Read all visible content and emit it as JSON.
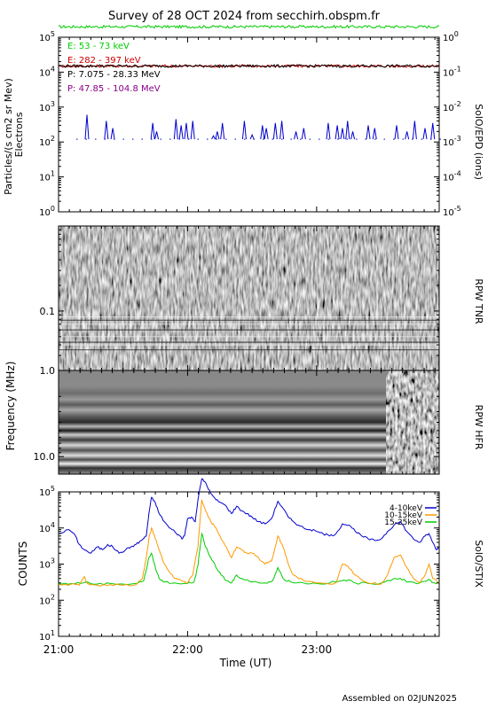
{
  "title": "Survey of 28 OCT 2024 from secchirh.obspm.fr",
  "footer": "Assembled on 02JUN2025",
  "colors": {
    "green": "#00cc00",
    "red": "#cc0000",
    "black": "#000000",
    "purple": "#880088",
    "blue": "#0000cc",
    "orange": "#ff9900",
    "stix_green": "#00cc00"
  },
  "chart_data": [
    {
      "type": "line",
      "panel": "SolO/EPD",
      "ylabel": "Particles/(s cm2 sr Mev)",
      "ylabel2": "Electrons",
      "right_label": "SolO/EPD (ions)",
      "yscale": "log",
      "ylim": [
        1,
        100000
      ],
      "yticks": [
        {
          "exp": 0,
          "label": "10",
          "sup": "0"
        },
        {
          "exp": 1,
          "label": "10",
          "sup": "1"
        },
        {
          "exp": 2,
          "label": "10",
          "sup": "2"
        },
        {
          "exp": 3,
          "label": "10",
          "sup": "3"
        },
        {
          "exp": 4,
          "label": "10",
          "sup": "4"
        },
        {
          "exp": 5,
          "label": "10",
          "sup": "5"
        }
      ],
      "right_yscale": "log",
      "right_ylim": [
        1e-05,
        1
      ],
      "right_yticks": [
        {
          "exp": -5,
          "label": "10",
          "sup": "-5"
        },
        {
          "exp": -4,
          "label": "10",
          "sup": "-4"
        },
        {
          "exp": -3,
          "label": "10",
          "sup": "-3"
        },
        {
          "exp": -2,
          "label": "10",
          "sup": "-2"
        },
        {
          "exp": -1,
          "label": "10",
          "sup": "-1"
        },
        {
          "exp": 0,
          "label": "10",
          "sup": "0"
        }
      ],
      "xlim_hours": [
        21.0,
        23.95
      ],
      "series": [
        {
          "name": "E: 53 - 73 keV",
          "color": "#00cc00",
          "axis": "left",
          "kind": "flat",
          "level": 200000
        },
        {
          "name": "E: 282 - 397 keV",
          "color": "#cc0000",
          "axis": "left",
          "kind": "flat",
          "level": 15000
        },
        {
          "name": "P: 7.075 - 28.33 MeV",
          "color": "#000000",
          "axis": "right",
          "kind": "flat",
          "level": 0.15
        },
        {
          "name": "P: 47.85 - 104.8 MeV",
          "color": "#880088",
          "axis": "right",
          "kind": "none"
        },
        {
          "name": "",
          "color": "#0000cc",
          "axis": "left",
          "kind": "spikes",
          "baseline": 120,
          "spikes": [
            [
              21.22,
              600
            ],
            [
              21.37,
              400
            ],
            [
              21.42,
              250
            ],
            [
              21.73,
              350
            ],
            [
              21.76,
              200
            ],
            [
              21.91,
              450
            ],
            [
              21.95,
              300
            ],
            [
              21.99,
              350
            ],
            [
              22.04,
              400
            ],
            [
              22.2,
              150
            ],
            [
              22.23,
              200
            ],
            [
              22.27,
              350
            ],
            [
              22.44,
              400
            ],
            [
              22.5,
              160
            ],
            [
              22.58,
              300
            ],
            [
              22.61,
              250
            ],
            [
              22.68,
              350
            ],
            [
              22.73,
              400
            ],
            [
              22.84,
              200
            ],
            [
              22.9,
              250
            ],
            [
              23.09,
              350
            ],
            [
              23.16,
              300
            ],
            [
              23.2,
              250
            ],
            [
              23.24,
              400
            ],
            [
              23.28,
              200
            ],
            [
              23.4,
              300
            ],
            [
              23.45,
              250
            ],
            [
              23.62,
              300
            ],
            [
              23.7,
              200
            ],
            [
              23.76,
              400
            ],
            [
              23.84,
              250
            ],
            [
              23.9,
              350
            ]
          ]
        }
      ]
    },
    {
      "type": "heatmap",
      "panel": "RPW TNR",
      "ylabel": "Frequency (MHz)",
      "right_label": "RPW TNR",
      "yscale": "log",
      "ylim_mhz": [
        0.02,
        1.0
      ],
      "yticks": [
        {
          "value": 0.1,
          "label": "0.1"
        }
      ]
    },
    {
      "type": "heatmap",
      "panel": "RPW HFR",
      "right_label": "RPW HFR",
      "yscale": "log",
      "ylim_mhz": [
        1.0,
        16.0
      ],
      "yticks": [
        {
          "value": 1.0,
          "label": "1.0"
        },
        {
          "value": 10.0,
          "label": "10.0"
        }
      ]
    },
    {
      "type": "line",
      "panel": "SolO/STIX",
      "ylabel": "COUNTS",
      "right_label": "SolO/STIX",
      "yscale": "log",
      "ylim": [
        10,
        100000
      ],
      "yticks": [
        {
          "exp": 1,
          "label": "10",
          "sup": "1"
        },
        {
          "exp": 2,
          "label": "10",
          "sup": "2"
        },
        {
          "exp": 3,
          "label": "10",
          "sup": "3"
        },
        {
          "exp": 4,
          "label": "10",
          "sup": "4"
        },
        {
          "exp": 5,
          "label": "10",
          "sup": "5"
        }
      ],
      "xlabel": "Time (UT)",
      "xticks": [
        {
          "hour": 21.0,
          "label": "21:00"
        },
        {
          "hour": 22.0,
          "label": "22:00"
        },
        {
          "hour": 23.0,
          "label": "23:00"
        }
      ],
      "xlim_hours": [
        21.0,
        23.95
      ],
      "series": [
        {
          "name": "4-10keV",
          "color": "#0000cc",
          "points": [
            [
              21.0,
              7000
            ],
            [
              21.08,
              9000
            ],
            [
              21.12,
              7000
            ],
            [
              21.16,
              3500
            ],
            [
              21.2,
              2500
            ],
            [
              21.25,
              2000
            ],
            [
              21.3,
              3000
            ],
            [
              21.34,
              2500
            ],
            [
              21.38,
              3500
            ],
            [
              21.42,
              3000
            ],
            [
              21.47,
              2000
            ],
            [
              21.52,
              2500
            ],
            [
              21.56,
              3000
            ],
            [
              21.6,
              3500
            ],
            [
              21.64,
              4500
            ],
            [
              21.68,
              6000
            ],
            [
              21.7,
              25000
            ],
            [
              21.72,
              70000
            ],
            [
              21.75,
              50000
            ],
            [
              21.78,
              25000
            ],
            [
              21.82,
              15000
            ],
            [
              21.86,
              10000
            ],
            [
              21.9,
              8000
            ],
            [
              21.94,
              6000
            ],
            [
              21.96,
              5000
            ],
            [
              21.98,
              7000
            ],
            [
              22.0,
              18000
            ],
            [
              22.03,
              20000
            ],
            [
              22.06,
              15000
            ],
            [
              22.08,
              60000
            ],
            [
              22.11,
              230000
            ],
            [
              22.14,
              180000
            ],
            [
              22.18,
              90000
            ],
            [
              22.22,
              60000
            ],
            [
              22.26,
              50000
            ],
            [
              22.3,
              40000
            ],
            [
              22.34,
              25000
            ],
            [
              22.38,
              40000
            ],
            [
              22.42,
              30000
            ],
            [
              22.46,
              25000
            ],
            [
              22.5,
              20000
            ],
            [
              22.55,
              15000
            ],
            [
              22.6,
              13000
            ],
            [
              22.65,
              18000
            ],
            [
              22.7,
              55000
            ],
            [
              22.74,
              35000
            ],
            [
              22.78,
              20000
            ],
            [
              22.82,
              15000
            ],
            [
              22.86,
              12000
            ],
            [
              22.9,
              10000
            ],
            [
              22.95,
              9000
            ],
            [
              23.0,
              8000
            ],
            [
              23.05,
              7000
            ],
            [
              23.1,
              6000
            ],
            [
              23.15,
              7000
            ],
            [
              23.2,
              13000
            ],
            [
              23.25,
              12000
            ],
            [
              23.3,
              8000
            ],
            [
              23.35,
              6000
            ],
            [
              23.4,
              5000
            ],
            [
              23.45,
              4500
            ],
            [
              23.5,
              5000
            ],
            [
              23.55,
              8000
            ],
            [
              23.6,
              12000
            ],
            [
              23.65,
              15000
            ],
            [
              23.7,
              8000
            ],
            [
              23.75,
              5000
            ],
            [
              23.8,
              4000
            ],
            [
              23.84,
              6000
            ],
            [
              23.87,
              7000
            ],
            [
              23.9,
              4000
            ],
            [
              23.93,
              2500
            ],
            [
              23.95,
              3000
            ]
          ]
        },
        {
          "name": "10-15keV",
          "color": "#ff9900",
          "points": [
            [
              21.0,
              270
            ],
            [
              21.1,
              280
            ],
            [
              21.16,
              260
            ],
            [
              21.2,
              450
            ],
            [
              21.22,
              300
            ],
            [
              21.3,
              260
            ],
            [
              21.4,
              270
            ],
            [
              21.5,
              260
            ],
            [
              21.6,
              270
            ],
            [
              21.65,
              400
            ],
            [
              21.68,
              1500
            ],
            [
              21.7,
              5000
            ],
            [
              21.72,
              10000
            ],
            [
              21.75,
              5000
            ],
            [
              21.78,
              2500
            ],
            [
              21.82,
              1000
            ],
            [
              21.86,
              600
            ],
            [
              21.9,
              400
            ],
            [
              21.95,
              350
            ],
            [
              22.0,
              300
            ],
            [
              22.04,
              500
            ],
            [
              22.08,
              3000
            ],
            [
              22.11,
              60000
            ],
            [
              22.14,
              30000
            ],
            [
              22.18,
              15000
            ],
            [
              22.22,
              10000
            ],
            [
              22.26,
              5000
            ],
            [
              22.3,
              3000
            ],
            [
              22.34,
              1500
            ],
            [
              22.38,
              3000
            ],
            [
              22.42,
              2500
            ],
            [
              22.46,
              2000
            ],
            [
              22.5,
              2000
            ],
            [
              22.55,
              1500
            ],
            [
              22.6,
              1000
            ],
            [
              22.65,
              1200
            ],
            [
              22.7,
              6000
            ],
            [
              22.74,
              3000
            ],
            [
              22.78,
              1000
            ],
            [
              22.82,
              500
            ],
            [
              22.9,
              350
            ],
            [
              23.0,
              300
            ],
            [
              23.1,
              280
            ],
            [
              23.15,
              300
            ],
            [
              23.2,
              1000
            ],
            [
              23.24,
              900
            ],
            [
              23.3,
              500
            ],
            [
              23.4,
              300
            ],
            [
              23.5,
              280
            ],
            [
              23.55,
              500
            ],
            [
              23.6,
              1500
            ],
            [
              23.65,
              1800
            ],
            [
              23.7,
              800
            ],
            [
              23.75,
              400
            ],
            [
              23.8,
              300
            ],
            [
              23.84,
              500
            ],
            [
              23.87,
              1000
            ],
            [
              23.9,
              400
            ],
            [
              23.95,
              300
            ]
          ]
        },
        {
          "name": "15-25keV",
          "color": "#00cc00",
          "points": [
            [
              21.0,
              280
            ],
            [
              21.1,
              290
            ],
            [
              21.2,
              310
            ],
            [
              21.3,
              280
            ],
            [
              21.4,
              290
            ],
            [
              21.5,
              280
            ],
            [
              21.6,
              290
            ],
            [
              21.66,
              350
            ],
            [
              21.68,
              700
            ],
            [
              21.7,
              1500
            ],
            [
              21.72,
              2000
            ],
            [
              21.75,
              800
            ],
            [
              21.78,
              400
            ],
            [
              21.82,
              320
            ],
            [
              21.9,
              300
            ],
            [
              22.0,
              290
            ],
            [
              22.05,
              320
            ],
            [
              22.08,
              900
            ],
            [
              22.11,
              7000
            ],
            [
              22.14,
              3000
            ],
            [
              22.18,
              1500
            ],
            [
              22.22,
              800
            ],
            [
              22.26,
              500
            ],
            [
              22.3,
              350
            ],
            [
              22.34,
              300
            ],
            [
              22.38,
              500
            ],
            [
              22.42,
              400
            ],
            [
              22.5,
              320
            ],
            [
              22.6,
              300
            ],
            [
              22.66,
              350
            ],
            [
              22.7,
              800
            ],
            [
              22.74,
              400
            ],
            [
              22.8,
              320
            ],
            [
              22.9,
              300
            ],
            [
              23.0,
              290
            ],
            [
              23.1,
              300
            ],
            [
              23.2,
              350
            ],
            [
              23.24,
              360
            ],
            [
              23.3,
              300
            ],
            [
              23.4,
              290
            ],
            [
              23.5,
              300
            ],
            [
              23.6,
              400
            ],
            [
              23.65,
              400
            ],
            [
              23.7,
              320
            ],
            [
              23.8,
              300
            ],
            [
              23.87,
              380
            ],
            [
              23.9,
              310
            ],
            [
              23.95,
              300
            ]
          ]
        }
      ]
    }
  ]
}
